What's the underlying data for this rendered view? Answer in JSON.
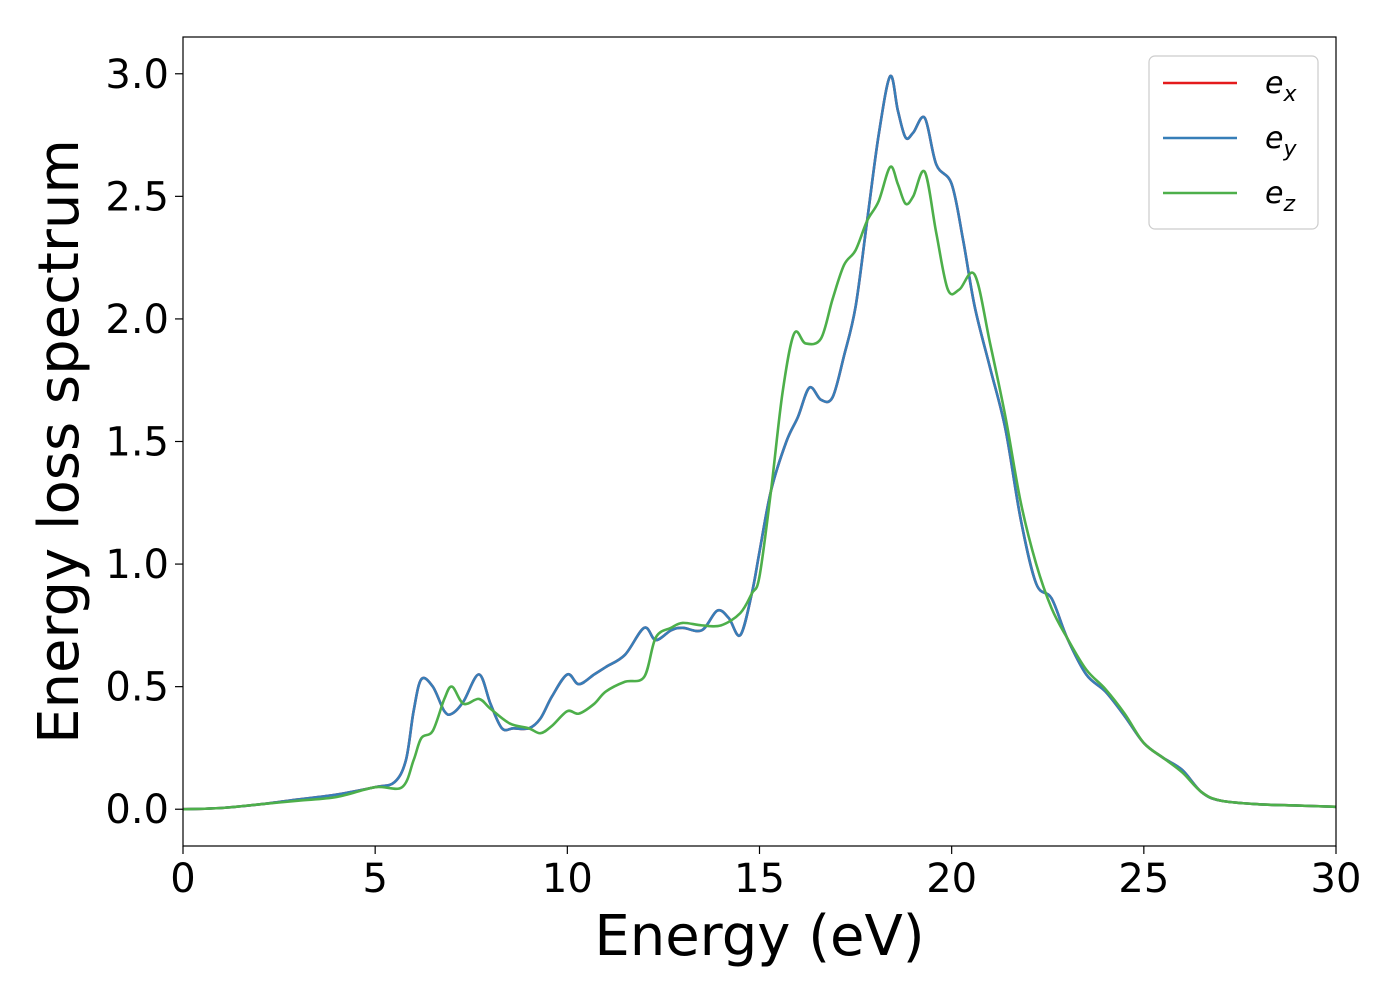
{
  "chart_data": {
    "type": "line",
    "title": "",
    "xlabel": "Energy (eV)",
    "ylabel": "Energy loss spectrum",
    "xlim": [
      0,
      30
    ],
    "ylim": [
      -0.15,
      3.15
    ],
    "xticks": [
      0,
      5,
      10,
      15,
      20,
      25,
      30
    ],
    "xtick_labels": [
      "0",
      "5",
      "10",
      "15",
      "20",
      "25",
      "30"
    ],
    "yticks": [
      0.0,
      0.5,
      1.0,
      1.5,
      2.0,
      2.5,
      3.0
    ],
    "ytick_labels": [
      "0.0",
      "0.5",
      "1.0",
      "1.5",
      "2.0",
      "2.5",
      "3.0"
    ],
    "grid": false,
    "legend_position": "top-right",
    "series": [
      {
        "name": "e_x",
        "label_base": "e",
        "label_sub": "x",
        "color": "#e41a1c",
        "x": [
          0,
          1,
          2,
          3,
          4,
          5,
          5.5,
          5.8,
          6.0,
          6.2,
          6.5,
          6.8,
          7.0,
          7.3,
          7.7,
          8.0,
          8.3,
          8.6,
          9.0,
          9.3,
          9.6,
          10.0,
          10.3,
          10.7,
          11.0,
          11.5,
          12.0,
          12.3,
          12.7,
          13.0,
          13.5,
          13.9,
          14.2,
          14.5,
          14.8,
          15.0,
          15.3,
          15.7,
          16.0,
          16.3,
          16.6,
          16.9,
          17.2,
          17.5,
          17.8,
          18.1,
          18.4,
          18.6,
          18.8,
          19.0,
          19.3,
          19.6,
          20.0,
          20.3,
          20.6,
          21.0,
          21.4,
          21.8,
          22.2,
          22.6,
          23.0,
          23.5,
          24.0,
          24.5,
          25.0,
          25.5,
          26.0,
          26.5,
          27.0,
          28.0,
          29.0,
          30.0
        ],
        "y": [
          0.0,
          0.005,
          0.02,
          0.04,
          0.06,
          0.09,
          0.11,
          0.2,
          0.4,
          0.53,
          0.5,
          0.4,
          0.39,
          0.44,
          0.55,
          0.43,
          0.33,
          0.33,
          0.33,
          0.37,
          0.46,
          0.55,
          0.51,
          0.55,
          0.58,
          0.63,
          0.74,
          0.69,
          0.73,
          0.74,
          0.73,
          0.81,
          0.78,
          0.71,
          0.88,
          1.05,
          1.3,
          1.5,
          1.6,
          1.72,
          1.67,
          1.68,
          1.85,
          2.05,
          2.4,
          2.75,
          2.99,
          2.85,
          2.74,
          2.76,
          2.82,
          2.63,
          2.55,
          2.32,
          2.05,
          1.8,
          1.55,
          1.18,
          0.92,
          0.86,
          0.7,
          0.55,
          0.48,
          0.38,
          0.27,
          0.21,
          0.16,
          0.07,
          0.035,
          0.02,
          0.015,
          0.01
        ]
      },
      {
        "name": "e_y",
        "label_base": "e",
        "label_sub": "y",
        "color": "#377eb8",
        "x": [
          0,
          1,
          2,
          3,
          4,
          5,
          5.5,
          5.8,
          6.0,
          6.2,
          6.5,
          6.8,
          7.0,
          7.3,
          7.7,
          8.0,
          8.3,
          8.6,
          9.0,
          9.3,
          9.6,
          10.0,
          10.3,
          10.7,
          11.0,
          11.5,
          12.0,
          12.3,
          12.7,
          13.0,
          13.5,
          13.9,
          14.2,
          14.5,
          14.8,
          15.0,
          15.3,
          15.7,
          16.0,
          16.3,
          16.6,
          16.9,
          17.2,
          17.5,
          17.8,
          18.1,
          18.4,
          18.6,
          18.8,
          19.0,
          19.3,
          19.6,
          20.0,
          20.3,
          20.6,
          21.0,
          21.4,
          21.8,
          22.2,
          22.6,
          23.0,
          23.5,
          24.0,
          24.5,
          25.0,
          25.5,
          26.0,
          26.5,
          27.0,
          28.0,
          29.0,
          30.0
        ],
        "y": [
          0.0,
          0.005,
          0.02,
          0.04,
          0.06,
          0.09,
          0.11,
          0.2,
          0.4,
          0.53,
          0.5,
          0.4,
          0.39,
          0.44,
          0.55,
          0.43,
          0.33,
          0.33,
          0.33,
          0.37,
          0.46,
          0.55,
          0.51,
          0.55,
          0.58,
          0.63,
          0.74,
          0.69,
          0.73,
          0.74,
          0.73,
          0.81,
          0.78,
          0.71,
          0.88,
          1.05,
          1.3,
          1.5,
          1.6,
          1.72,
          1.67,
          1.68,
          1.85,
          2.05,
          2.4,
          2.75,
          2.99,
          2.85,
          2.74,
          2.76,
          2.82,
          2.63,
          2.55,
          2.32,
          2.05,
          1.8,
          1.55,
          1.18,
          0.92,
          0.86,
          0.7,
          0.55,
          0.48,
          0.38,
          0.27,
          0.21,
          0.16,
          0.07,
          0.035,
          0.02,
          0.015,
          0.01
        ]
      },
      {
        "name": "e_z",
        "label_base": "e",
        "label_sub": "z",
        "color": "#4daf4a",
        "x": [
          0,
          1,
          2,
          3,
          4,
          5,
          5.7,
          6.0,
          6.2,
          6.5,
          6.8,
          7.0,
          7.3,
          7.7,
          8.0,
          8.5,
          9.0,
          9.3,
          9.6,
          10.0,
          10.3,
          10.7,
          11.0,
          11.5,
          12.0,
          12.3,
          12.7,
          13.0,
          13.5,
          14.0,
          14.5,
          14.8,
          15.0,
          15.3,
          15.6,
          15.9,
          16.2,
          16.6,
          16.9,
          17.2,
          17.5,
          17.8,
          18.1,
          18.4,
          18.6,
          18.8,
          19.0,
          19.3,
          19.6,
          19.9,
          20.2,
          20.6,
          21.0,
          21.4,
          21.8,
          22.2,
          22.6,
          23.0,
          23.5,
          24.0,
          24.5,
          25.0,
          25.5,
          26.0,
          26.5,
          27.0,
          28.0,
          29.0,
          30.0
        ],
        "y": [
          0.0,
          0.005,
          0.02,
          0.035,
          0.05,
          0.09,
          0.09,
          0.2,
          0.29,
          0.32,
          0.45,
          0.5,
          0.43,
          0.45,
          0.41,
          0.35,
          0.33,
          0.31,
          0.34,
          0.4,
          0.39,
          0.43,
          0.48,
          0.52,
          0.54,
          0.7,
          0.74,
          0.76,
          0.75,
          0.75,
          0.8,
          0.88,
          0.95,
          1.3,
          1.7,
          1.94,
          1.9,
          1.92,
          2.08,
          2.22,
          2.28,
          2.4,
          2.48,
          2.62,
          2.55,
          2.47,
          2.5,
          2.6,
          2.35,
          2.12,
          2.12,
          2.18,
          1.9,
          1.6,
          1.25,
          1.0,
          0.82,
          0.7,
          0.57,
          0.49,
          0.39,
          0.27,
          0.21,
          0.15,
          0.07,
          0.035,
          0.02,
          0.015,
          0.01
        ]
      }
    ]
  }
}
